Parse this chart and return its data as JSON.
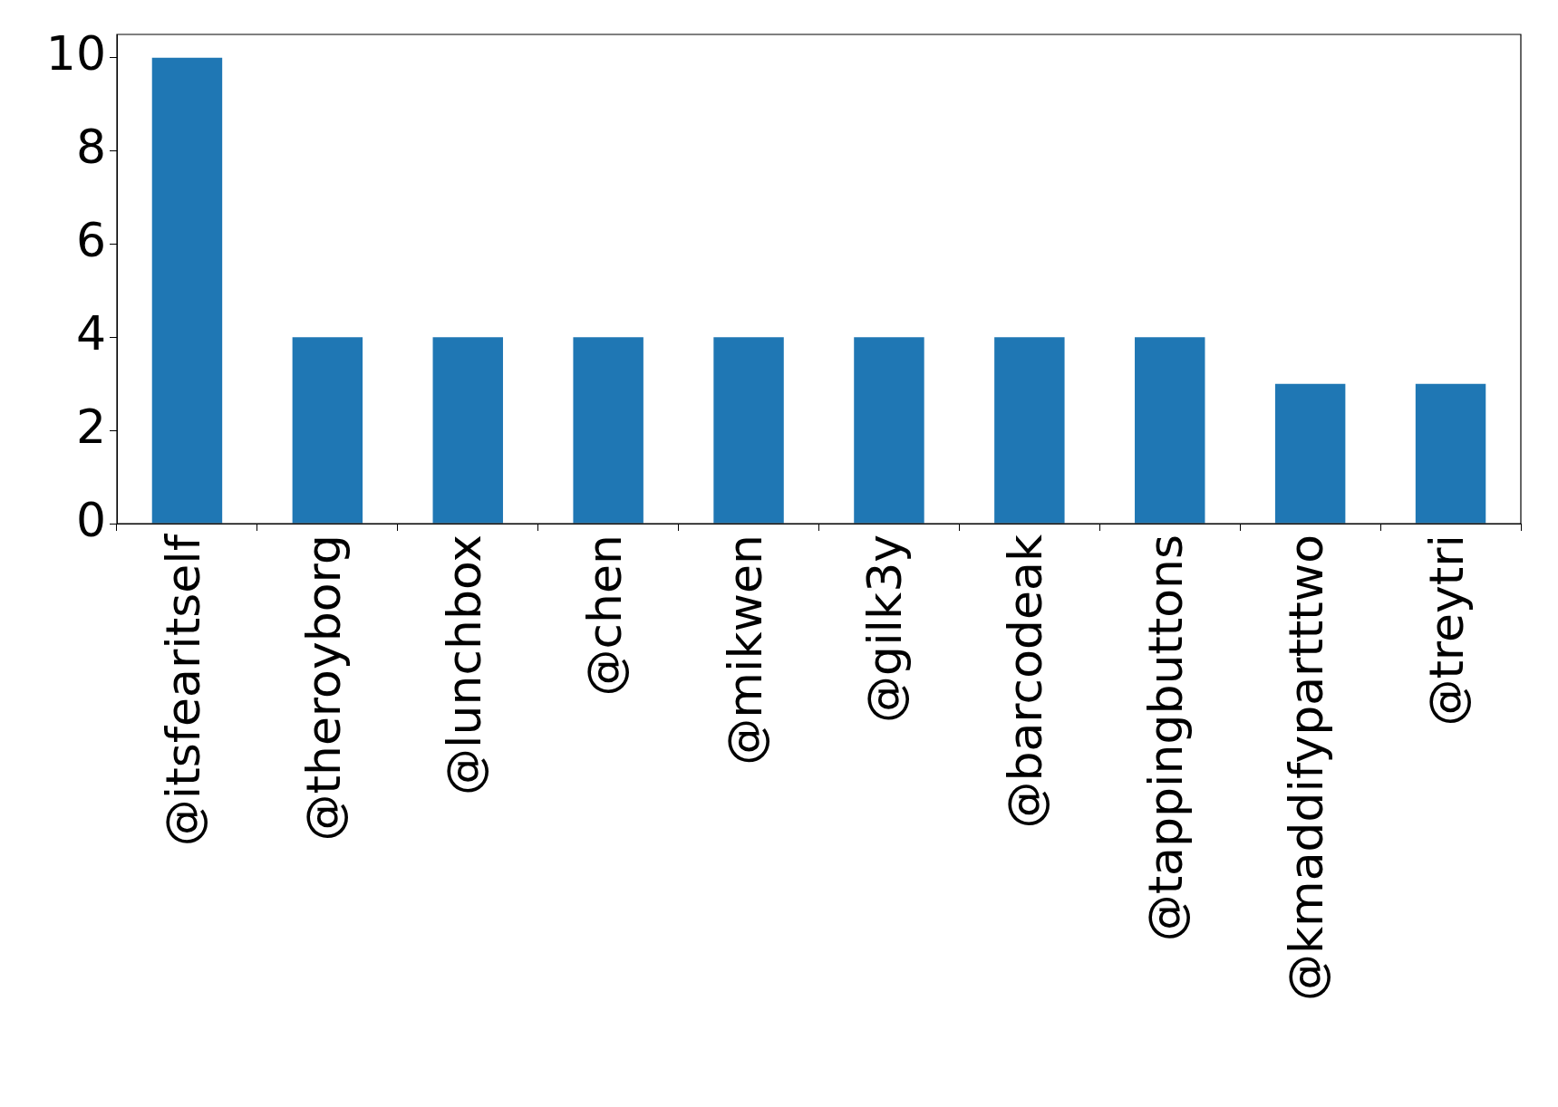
{
  "chart_data": {
    "type": "bar",
    "categories": [
      "@itsfearitself",
      "@theroyborg",
      "@lunchbox",
      "@chen",
      "@mikwen",
      "@gilk3y",
      "@barcodeak",
      "@tappingbuttons",
      "@kmaddifypartttwo",
      "@treytri"
    ],
    "values": [
      10,
      4,
      4,
      4,
      4,
      4,
      4,
      4,
      3,
      3
    ],
    "color": "#1f77b4",
    "ylim": [
      0,
      10.5
    ],
    "yticks": [
      0,
      2,
      4,
      6,
      8,
      10
    ],
    "grid": false,
    "legend": false
  }
}
